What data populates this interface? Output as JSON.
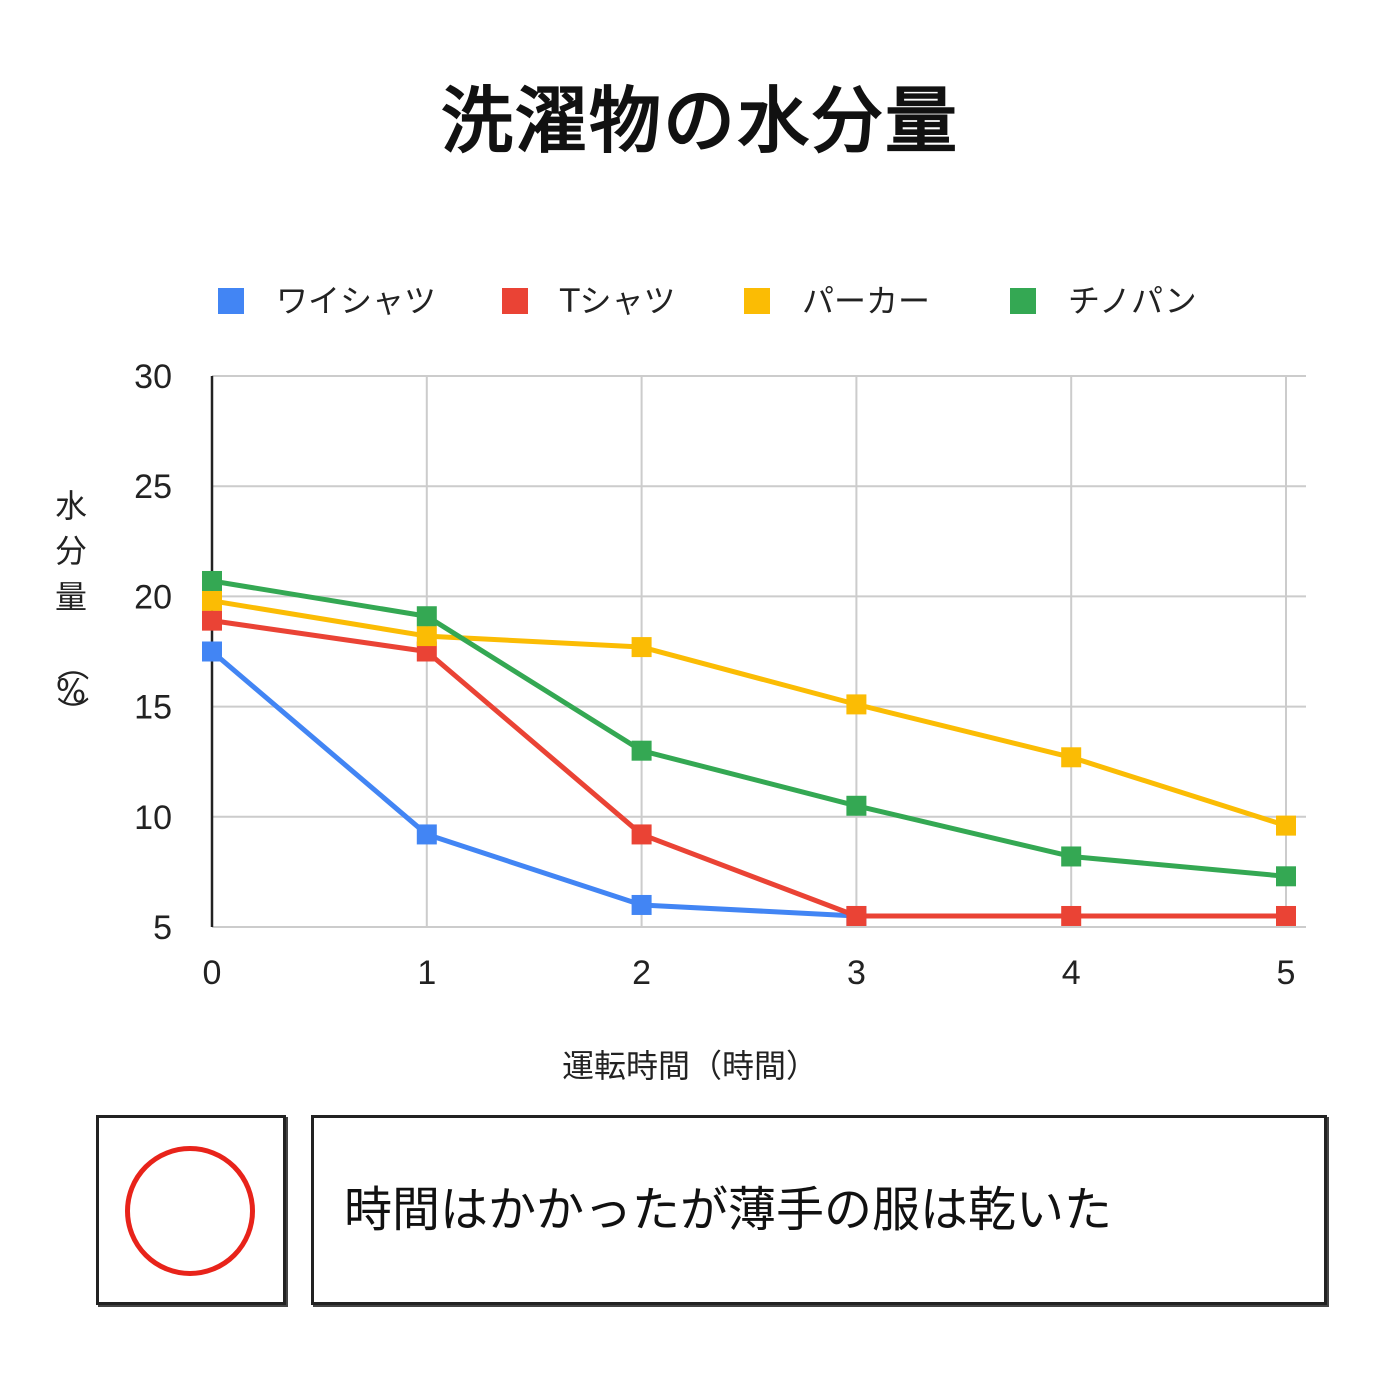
{
  "chart_data": {
    "type": "line",
    "title": "洗濯物の水分量",
    "xlabel": "運転時間（時間）",
    "ylabel": "水分量（%）",
    "x": [
      0,
      1,
      2,
      3,
      4,
      5
    ],
    "xlim": [
      0,
      5
    ],
    "ylim": [
      5,
      30
    ],
    "yticks": [
      5,
      10,
      15,
      20,
      25,
      30
    ],
    "grid": true,
    "legend_position": "top",
    "series": [
      {
        "name": "ワイシャツ",
        "color": "#4285f4",
        "values": [
          17.5,
          9.2,
          6.0,
          5.5,
          null,
          null
        ]
      },
      {
        "name": "Tシャツ",
        "color": "#ea4335",
        "values": [
          18.9,
          17.5,
          9.2,
          5.5,
          5.5,
          5.5
        ]
      },
      {
        "name": "パーカー",
        "color": "#fbbc04",
        "values": [
          19.8,
          18.2,
          17.7,
          15.1,
          12.7,
          9.6
        ]
      },
      {
        "name": "チノパン",
        "color": "#34a853",
        "values": [
          20.7,
          19.1,
          13.0,
          10.5,
          8.2,
          7.3
        ]
      }
    ]
  },
  "evaluation": {
    "mark": "circle",
    "mark_color": "#e8231a",
    "comment": "時間はかかったが薄手の服は乾いた"
  }
}
